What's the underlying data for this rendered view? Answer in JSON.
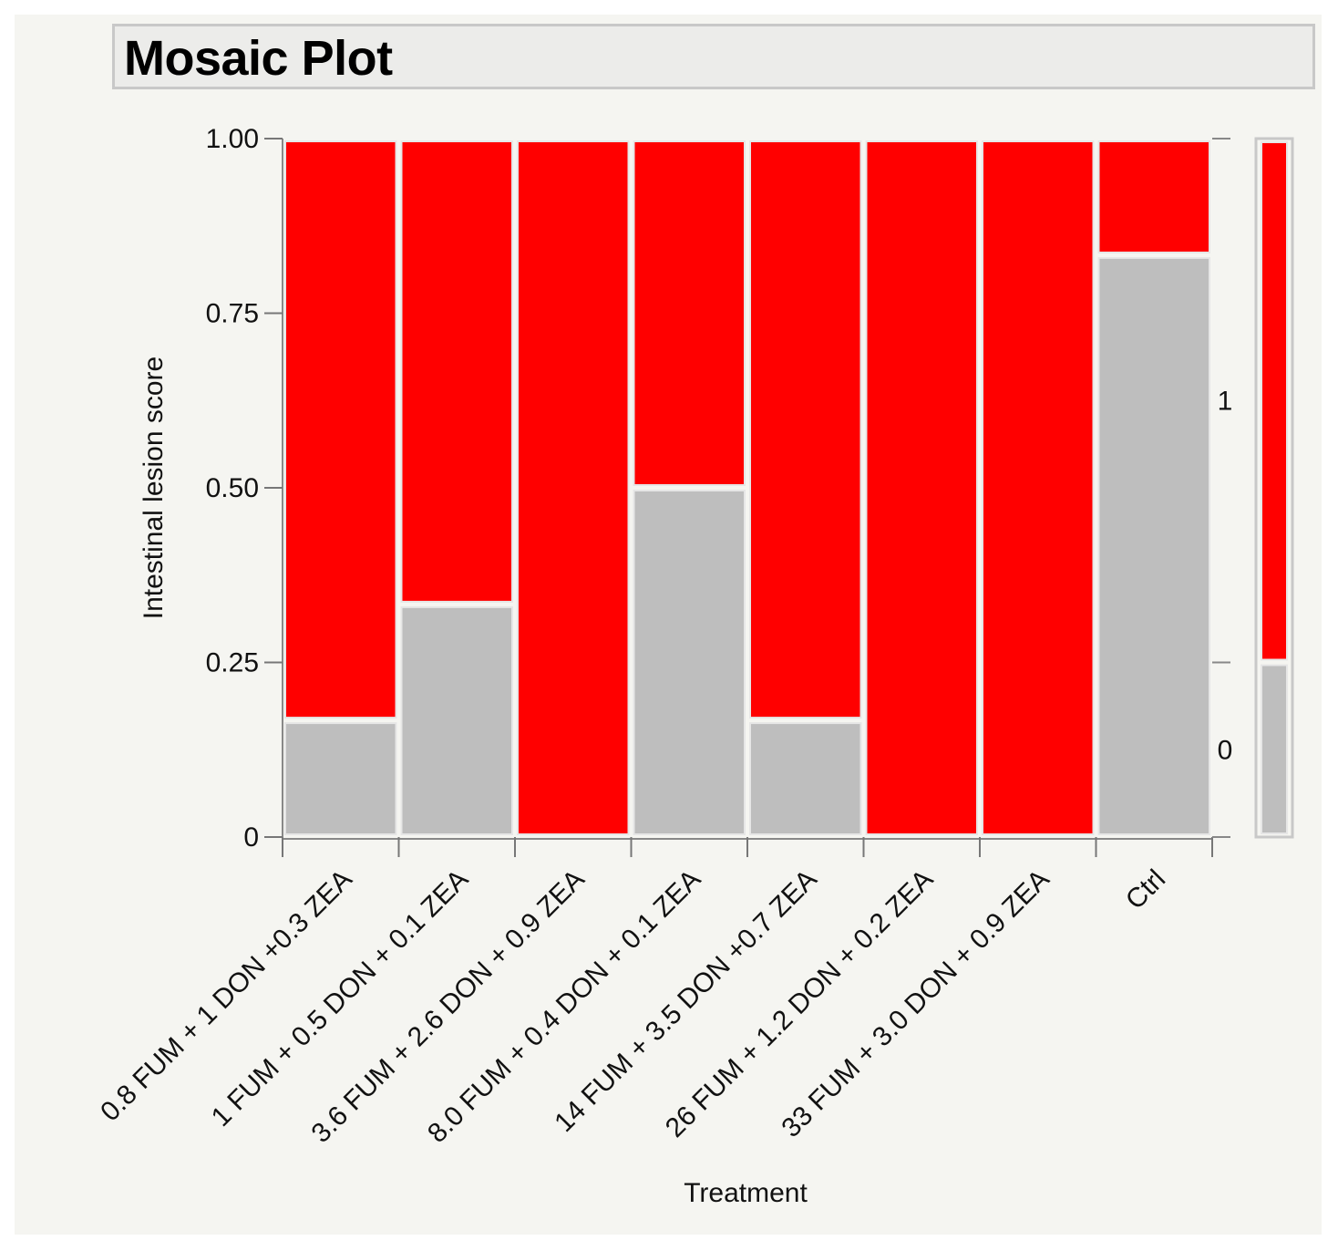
{
  "title": "Mosaic Plot",
  "chart_data": {
    "type": "mosaic",
    "title": "Mosaic Plot",
    "xlabel": "Treatment",
    "ylabel": "Intestinal lesion score",
    "ylim": [
      0,
      1
    ],
    "yticks": [
      "0",
      "0.25",
      "0.50",
      "0.75",
      "1.00"
    ],
    "levels": [
      "0",
      "1"
    ],
    "categories": [
      "0.8 FUM + 1 DON +0.3 ZEA",
      "1 FUM + 0.5 DON + 0.1 ZEA",
      "3.6 FUM + 2.6 DON + 0.9 ZEA",
      "8.0 FUM + 0.4 DON + 0.1 ZEA",
      "14 FUM + 3.5 DON +0.7 ZEA",
      "26 FUM + 1.2 DON + 0.2 ZEA",
      "33 FUM + 3.0 DON + 0.9 ZEA",
      "Ctrl"
    ],
    "series": [
      {
        "name": "0",
        "color": "#bebebe",
        "values": [
          0.167,
          0.333,
          0.0,
          0.5,
          0.167,
          0.0,
          0.0,
          0.833
        ]
      },
      {
        "name": "1",
        "color": "#ff0000",
        "values": [
          0.833,
          0.667,
          1.0,
          0.5,
          0.833,
          1.0,
          1.0,
          0.167
        ]
      }
    ],
    "overall": {
      "0": 0.25,
      "1": 0.75
    }
  }
}
